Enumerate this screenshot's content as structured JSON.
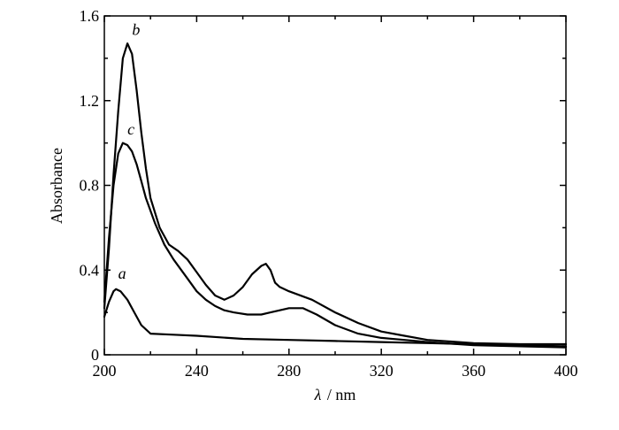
{
  "chart_data": {
    "type": "line",
    "xlabel_symbol": "λ",
    "xlabel_unit": "/ nm",
    "ylabel": "Absorbance",
    "xlim": [
      200,
      400
    ],
    "ylim": [
      0,
      1.6
    ],
    "x_ticks": [
      200,
      240,
      280,
      320,
      360,
      400
    ],
    "x_tick_labels": [
      "200",
      "240",
      "280",
      "320",
      "360",
      "400"
    ],
    "y_ticks": [
      0,
      0.4,
      0.8,
      1.2,
      1.6
    ],
    "y_tick_labels": [
      "0",
      "0.4",
      "0.8",
      "1.2",
      "1.6"
    ],
    "grid": false,
    "series": [
      {
        "name": "a",
        "label_at": [
          206,
          0.36
        ],
        "points": [
          [
            200,
            0.18
          ],
          [
            202,
            0.25
          ],
          [
            204,
            0.3
          ],
          [
            205,
            0.31
          ],
          [
            207,
            0.3
          ],
          [
            210,
            0.26
          ],
          [
            213,
            0.2
          ],
          [
            216,
            0.14
          ],
          [
            220,
            0.1
          ],
          [
            230,
            0.095
          ],
          [
            240,
            0.09
          ],
          [
            260,
            0.075
          ],
          [
            280,
            0.07
          ],
          [
            300,
            0.065
          ],
          [
            320,
            0.06
          ],
          [
            340,
            0.055
          ],
          [
            360,
            0.05
          ],
          [
            380,
            0.045
          ],
          [
            400,
            0.04
          ]
        ]
      },
      {
        "name": "b",
        "label_at": [
          212,
          1.51
        ],
        "points": [
          [
            200,
            0.22
          ],
          [
            202,
            0.5
          ],
          [
            204,
            0.85
          ],
          [
            206,
            1.15
          ],
          [
            208,
            1.4
          ],
          [
            210,
            1.47
          ],
          [
            212,
            1.42
          ],
          [
            214,
            1.25
          ],
          [
            216,
            1.05
          ],
          [
            218,
            0.88
          ],
          [
            220,
            0.74
          ],
          [
            224,
            0.6
          ],
          [
            228,
            0.52
          ],
          [
            232,
            0.49
          ],
          [
            236,
            0.45
          ],
          [
            240,
            0.39
          ],
          [
            244,
            0.33
          ],
          [
            248,
            0.28
          ],
          [
            252,
            0.26
          ],
          [
            256,
            0.28
          ],
          [
            260,
            0.32
          ],
          [
            264,
            0.38
          ],
          [
            268,
            0.42
          ],
          [
            270,
            0.43
          ],
          [
            272,
            0.4
          ],
          [
            274,
            0.34
          ],
          [
            276,
            0.32
          ],
          [
            280,
            0.3
          ],
          [
            290,
            0.26
          ],
          [
            300,
            0.2
          ],
          [
            310,
            0.15
          ],
          [
            320,
            0.11
          ],
          [
            330,
            0.09
          ],
          [
            340,
            0.07
          ],
          [
            360,
            0.055
          ],
          [
            380,
            0.05
          ],
          [
            400,
            0.05
          ]
        ]
      },
      {
        "name": "c",
        "label_at": [
          210,
          1.04
        ],
        "points": [
          [
            200,
            0.25
          ],
          [
            202,
            0.55
          ],
          [
            204,
            0.8
          ],
          [
            206,
            0.95
          ],
          [
            208,
            1.0
          ],
          [
            210,
            0.99
          ],
          [
            212,
            0.96
          ],
          [
            214,
            0.9
          ],
          [
            216,
            0.82
          ],
          [
            218,
            0.74
          ],
          [
            222,
            0.62
          ],
          [
            226,
            0.52
          ],
          [
            230,
            0.45
          ],
          [
            236,
            0.36
          ],
          [
            240,
            0.3
          ],
          [
            244,
            0.26
          ],
          [
            248,
            0.23
          ],
          [
            252,
            0.21
          ],
          [
            256,
            0.2
          ],
          [
            262,
            0.19
          ],
          [
            268,
            0.19
          ],
          [
            272,
            0.2
          ],
          [
            276,
            0.21
          ],
          [
            280,
            0.22
          ],
          [
            286,
            0.22
          ],
          [
            292,
            0.19
          ],
          [
            300,
            0.14
          ],
          [
            310,
            0.1
          ],
          [
            320,
            0.08
          ],
          [
            330,
            0.07
          ],
          [
            340,
            0.06
          ],
          [
            360,
            0.045
          ],
          [
            380,
            0.04
          ],
          [
            400,
            0.035
          ]
        ]
      }
    ]
  }
}
